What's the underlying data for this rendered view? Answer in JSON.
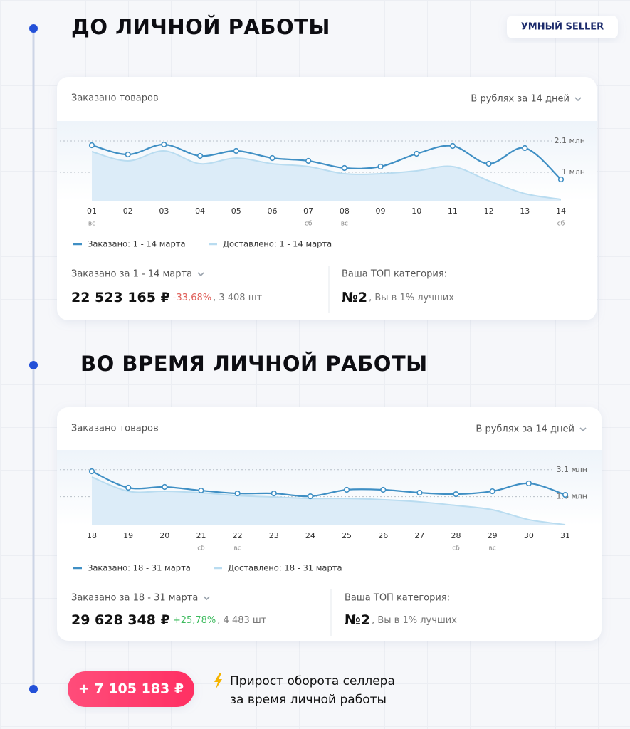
{
  "badge": "УМНЫЙ SELLER",
  "sections": [
    {
      "heading": "ДО ЛИЧНОЙ РАБОТЫ",
      "period_label": "Заказано за 1 - 14 марта",
      "total": "22 523 165 ₽",
      "change": "-33,68%",
      "change_color": "#e0605a",
      "quantity": ", 3 408 шт",
      "top_label": "Ваша ТОП категория:",
      "rank": "№2",
      "rank_note": ", Вы в 1% лучших"
    },
    {
      "heading": "ВО ВРЕМЯ ЛИЧНОЙ РАБОТЫ",
      "period_label": "Заказано за 18 - 31 марта",
      "total": "29 628 348 ₽",
      "change": "+25,78%",
      "change_color": "#3dbb5e",
      "quantity": ", 4 483 шт",
      "top_label": "Ваша ТОП категория:",
      "rank": "№2",
      "rank_note": ", Вы в 1% лучших"
    }
  ],
  "chart_data": [
    {
      "type": "line",
      "title": "Заказано товаров",
      "subtitle": "В рублях за 14 дней",
      "categories": [
        "01",
        "02",
        "03",
        "04",
        "05",
        "06",
        "07",
        "08",
        "09",
        "10",
        "11",
        "12",
        "13",
        "14"
      ],
      "category_sublabels": [
        "вс",
        null,
        null,
        null,
        null,
        null,
        "сб",
        "вс",
        null,
        null,
        null,
        null,
        null,
        "сб"
      ],
      "series": [
        {
          "name": "Заказано: 1 - 14 марта",
          "color": "#3f8fc4",
          "markers": true,
          "values": [
            1950000,
            1625000,
            1975000,
            1575000,
            1750000,
            1500000,
            1400000,
            1150000,
            1200000,
            1650000,
            1925000,
            1300000,
            1850000,
            750000
          ]
        },
        {
          "name": "Доставлено: 1 - 14 марта",
          "color": "#b9dcf0",
          "area": true,
          "values": [
            1725000,
            1400000,
            1750000,
            1300000,
            1500000,
            1300000,
            1200000,
            950000,
            950000,
            1050000,
            1200000,
            700000,
            250000,
            50000
          ]
        }
      ],
      "ylim": [
        0,
        2800000
      ],
      "yticks": [
        {
          "value": 1000000,
          "label": "1 млн"
        },
        {
          "value": 2100000,
          "label": "2.1 млн"
        }
      ],
      "grid": true
    },
    {
      "type": "line",
      "title": "Заказано товаров",
      "subtitle": "В рублях за 14 дней",
      "categories": [
        "18",
        "19",
        "20",
        "21",
        "22",
        "23",
        "24",
        "25",
        "26",
        "27",
        "28",
        "29",
        "30",
        "31"
      ],
      "category_sublabels": [
        null,
        null,
        null,
        "сб",
        "вс",
        null,
        null,
        null,
        null,
        null,
        "сб",
        "вс",
        null,
        null
      ],
      "series": [
        {
          "name": "Заказано: 18 - 31 марта",
          "color": "#3f8fc4",
          "markers": true,
          "values": [
            3010000,
            2100000,
            2140000,
            1940000,
            1780000,
            1780000,
            1620000,
            1980000,
            1980000,
            1820000,
            1740000,
            1900000,
            2340000,
            1700000
          ]
        },
        {
          "name": "Доставлено: 18 - 31 марта",
          "color": "#b9dcf0",
          "area": true,
          "values": [
            2690000,
            1900000,
            1900000,
            1820000,
            1660000,
            1580000,
            1500000,
            1500000,
            1430000,
            1310000,
            1110000,
            870000,
            320000,
            40000
          ]
        }
      ],
      "ylim": [
        0,
        4200000
      ],
      "yticks": [
        {
          "value": 1600000,
          "label": "1.6 млн"
        },
        {
          "value": 3100000,
          "label": "3.1 млн"
        }
      ],
      "grid": true
    }
  ],
  "footer": {
    "amount": "+ 7 105 183 ₽",
    "lines": [
      "Прирост оборота селлера",
      "за время личной работы"
    ]
  }
}
